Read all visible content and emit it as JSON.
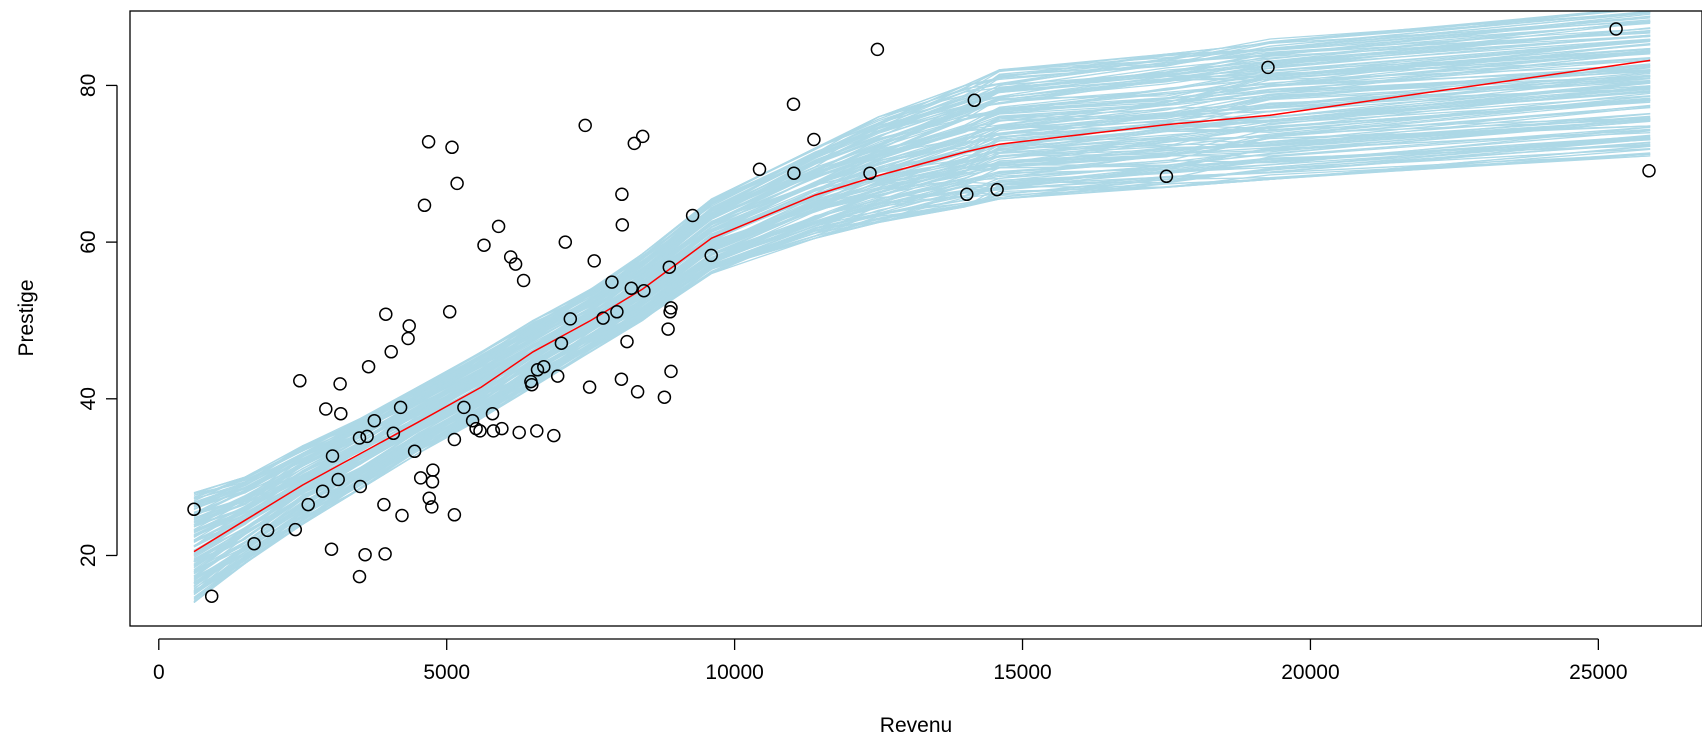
{
  "chart_data": {
    "type": "scatter",
    "title": "",
    "xlabel": "Revenu",
    "ylabel": "Prestige",
    "xlim": [
      -500,
      26800
    ],
    "ylim": [
      11,
      89.5
    ],
    "xticks": [
      0,
      5000,
      10000,
      15000,
      20000,
      25000
    ],
    "yticks": [
      20,
      40,
      60,
      80
    ],
    "grid": false,
    "legend": "none",
    "colors": {
      "points": "#000000",
      "bands": "#add8e6",
      "fit": "#ff0000",
      "frame": "#000000"
    },
    "fit_x": [
      611,
      1500,
      2500,
      3500,
      4500,
      5600,
      6500,
      7500,
      8400,
      9600,
      11400,
      12500,
      14000,
      14600,
      17500,
      19300,
      25900
    ],
    "fit_y": [
      20.5,
      24.5,
      29,
      33,
      37,
      41.5,
      46,
      50,
      54,
      60.5,
      66,
      68.5,
      71.5,
      72.5,
      75,
      76.2,
      83.2
    ],
    "band_lower": [
      14,
      19,
      24,
      28.5,
      33,
      37.5,
      41.5,
      46,
      50,
      56,
      60.5,
      62.5,
      64.5,
      65.5,
      67,
      68,
      71
    ],
    "band_upper": [
      28,
      30,
      34,
      37.5,
      41.5,
      46,
      50,
      54,
      58.5,
      65.5,
      72,
      76,
      80,
      82,
      84,
      86,
      90
    ],
    "points": [
      [
        611,
        25.9
      ],
      [
        918,
        14.8
      ],
      [
        1656,
        21.5
      ],
      [
        1890,
        23.2
      ],
      [
        2370,
        23.3
      ],
      [
        2448,
        42.3
      ],
      [
        2594,
        26.5
      ],
      [
        2847,
        28.2
      ],
      [
        2901,
        38.7
      ],
      [
        3000,
        20.8
      ],
      [
        3016,
        32.7
      ],
      [
        3116,
        29.7
      ],
      [
        3148,
        41.9
      ],
      [
        3161,
        38.1
      ],
      [
        3485,
        17.3
      ],
      [
        3485,
        35.0
      ],
      [
        3500,
        28.8
      ],
      [
        3582,
        20.1
      ],
      [
        3617,
        35.2
      ],
      [
        3643,
        44.1
      ],
      [
        3742,
        37.2
      ],
      [
        3910,
        26.5
      ],
      [
        3930,
        20.2
      ],
      [
        3942,
        50.8
      ],
      [
        4036,
        46.0
      ],
      [
        4075,
        35.6
      ],
      [
        4199,
        38.9
      ],
      [
        4224,
        25.1
      ],
      [
        4330,
        47.7
      ],
      [
        4348,
        49.3
      ],
      [
        4443,
        33.3
      ],
      [
        4549,
        29.9
      ],
      [
        4614,
        64.7
      ],
      [
        4686,
        72.8
      ],
      [
        4696,
        27.3
      ],
      [
        4741,
        26.2
      ],
      [
        4753,
        29.4
      ],
      [
        4761,
        30.9
      ],
      [
        5052,
        51.1
      ],
      [
        5092,
        72.1
      ],
      [
        5134,
        34.8
      ],
      [
        5134,
        25.2
      ],
      [
        5180,
        67.5
      ],
      [
        5299,
        38.9
      ],
      [
        5449,
        37.2
      ],
      [
        5511,
        36.2
      ],
      [
        5578,
        35.9
      ],
      [
        5648,
        59.6
      ],
      [
        5795,
        38.1
      ],
      [
        5811,
        35.9
      ],
      [
        5902,
        62.0
      ],
      [
        5959,
        36.2
      ],
      [
        6112,
        58.1
      ],
      [
        6197,
        57.2
      ],
      [
        6259,
        35.7
      ],
      [
        6336,
        55.1
      ],
      [
        6462,
        42.2
      ],
      [
        6477,
        41.8
      ],
      [
        6565,
        35.9
      ],
      [
        6576,
        43.7
      ],
      [
        6686,
        44.1
      ],
      [
        6860,
        35.3
      ],
      [
        6928,
        42.9
      ],
      [
        6992,
        47.1
      ],
      [
        7059,
        60.0
      ],
      [
        7147,
        50.2
      ],
      [
        7405,
        74.9
      ],
      [
        7482,
        41.5
      ],
      [
        7562,
        57.6
      ],
      [
        7716,
        50.3
      ],
      [
        7869,
        54.9
      ],
      [
        7956,
        51.1
      ],
      [
        8034,
        42.5
      ],
      [
        8043,
        66.1
      ],
      [
        8049,
        62.2
      ],
      [
        8131,
        47.3
      ],
      [
        8206,
        54.1
      ],
      [
        8258,
        72.6
      ],
      [
        8316,
        40.9
      ],
      [
        8403,
        73.5
      ],
      [
        8425,
        53.8
      ],
      [
        8780,
        40.2
      ],
      [
        8845,
        48.9
      ],
      [
        8865,
        56.8
      ],
      [
        8880,
        51.1
      ],
      [
        8895,
        51.6
      ],
      [
        8895,
        43.5
      ],
      [
        9271,
        63.4
      ],
      [
        9593,
        58.3
      ],
      [
        10432,
        69.3
      ],
      [
        11023,
        77.6
      ],
      [
        11030,
        68.8
      ],
      [
        11377,
        73.1
      ],
      [
        12351,
        68.8
      ],
      [
        12480,
        84.6
      ],
      [
        14032,
        66.1
      ],
      [
        14163,
        78.1
      ],
      [
        14558,
        66.7
      ],
      [
        17498,
        68.4
      ],
      [
        19263,
        82.3
      ],
      [
        25308,
        87.2
      ],
      [
        25879,
        69.1
      ]
    ]
  }
}
